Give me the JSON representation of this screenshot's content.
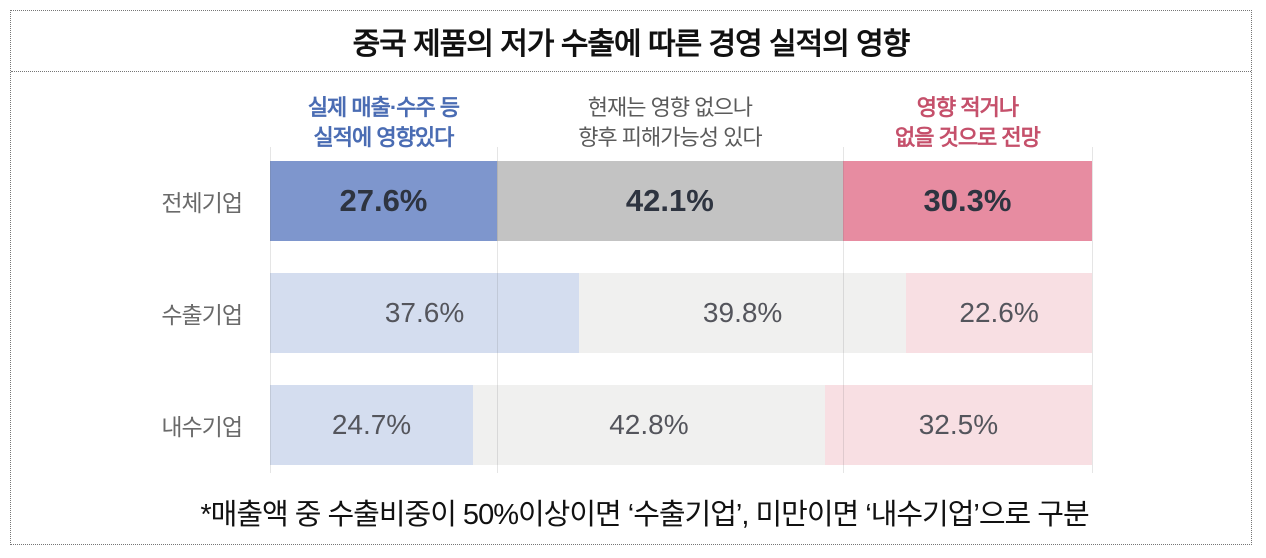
{
  "title": "중국 제품의 저가 수출에 따른 경영 실적의 영향",
  "footnote": "*매출액 중 수출비중이 50%이상이면 ‘수출기업’, 미만이면 ‘내수기업’으로 구분",
  "chart_data": {
    "type": "bar",
    "variant": "horizontal-stacked-100-percent",
    "categories": [
      "전체기업",
      "수출기업",
      "내수기업"
    ],
    "series": [
      {
        "name": "실제 매출·수주 등 실적에 영향있다",
        "values": [
          27.6,
          37.6,
          24.7
        ]
      },
      {
        "name": "현재는 영향 없으나 향후 피해가능성 있다",
        "values": [
          42.1,
          39.8,
          42.8
        ]
      },
      {
        "name": "영향 적거나 없을 것으로 전망",
        "values": [
          30.3,
          22.6,
          32.5
        ]
      }
    ],
    "value_suffix": "%",
    "xlim": [
      0,
      100
    ],
    "grid": "faint vertical separators at first-row segment boundaries",
    "legend_position": "top-as-column-headers"
  },
  "style": {
    "headers": [
      {
        "line1": "실제 매출·수주 등",
        "line2": "실적에 영향있다",
        "color": "#4A6CB3",
        "bold": true
      },
      {
        "line1": "현재는 영향 없으나",
        "line2": "향후 피해가능성 있다",
        "color": "#5B5B5B",
        "bold": false
      },
      {
        "line1": "영향 적거나",
        "line2": "없을 것으로 전망",
        "color": "#C5506B",
        "bold": true
      }
    ],
    "row_palettes": [
      [
        "#7E96CD",
        "#C3C3C3",
        "#E78CA1"
      ],
      [
        "#D4DDEF",
        "#F0F0EF",
        "#F8DFE3"
      ],
      [
        "#D4DDEF",
        "#F0F0EF",
        "#F8DFE3"
      ]
    ],
    "value_text_colors": [
      "#2E3440",
      "#54555C",
      "#54555C"
    ],
    "frame_border_color": "#767676",
    "row_label_color": "#6A6A6A"
  }
}
